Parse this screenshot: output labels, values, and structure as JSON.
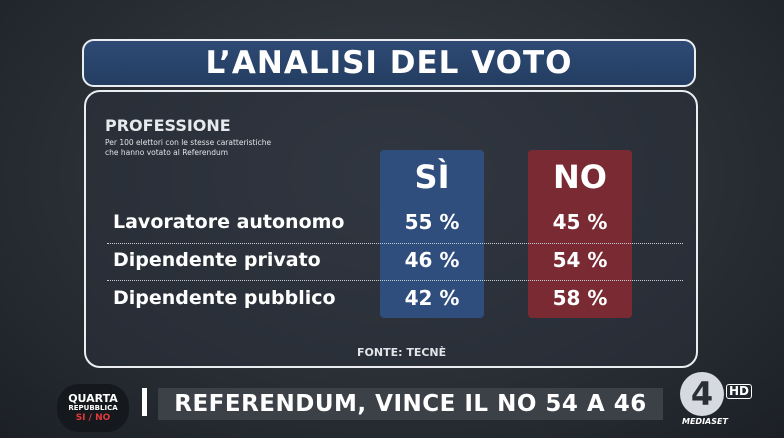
{
  "header": {
    "title": "L’ANALISI DEL VOTO"
  },
  "section": {
    "title": "PROFESSIONE",
    "subtitle_line1": "Per 100 elettori con le stesse caratteristiche",
    "subtitle_line2": "che hanno votato al Referendum"
  },
  "chart_data": {
    "type": "table",
    "title": "PROFESSIONE",
    "columns": [
      "SÌ",
      "NO"
    ],
    "column_colors": [
      "#2f4e7e",
      "#7a2a33"
    ],
    "rows": [
      {
        "label": "Lavoratore autonomo",
        "values": [
          "55 %",
          "45 %"
        ]
      },
      {
        "label": "Dipendente privato",
        "values": [
          "46 %",
          "54 %"
        ]
      },
      {
        "label": "Dipendente pubblico",
        "values": [
          "42 %",
          "58 %"
        ]
      }
    ],
    "source": "FONTE: TECNÈ"
  },
  "ticker": {
    "text": "REFERENDUM, VINCE IL NO 54 A 46"
  },
  "show_logo": {
    "line1": "QUARTA",
    "line2": "REPUBBLICA",
    "line3": "SI / NO"
  },
  "network_logo": {
    "number": "4",
    "hd": "HD",
    "name": "MEDIASET"
  }
}
